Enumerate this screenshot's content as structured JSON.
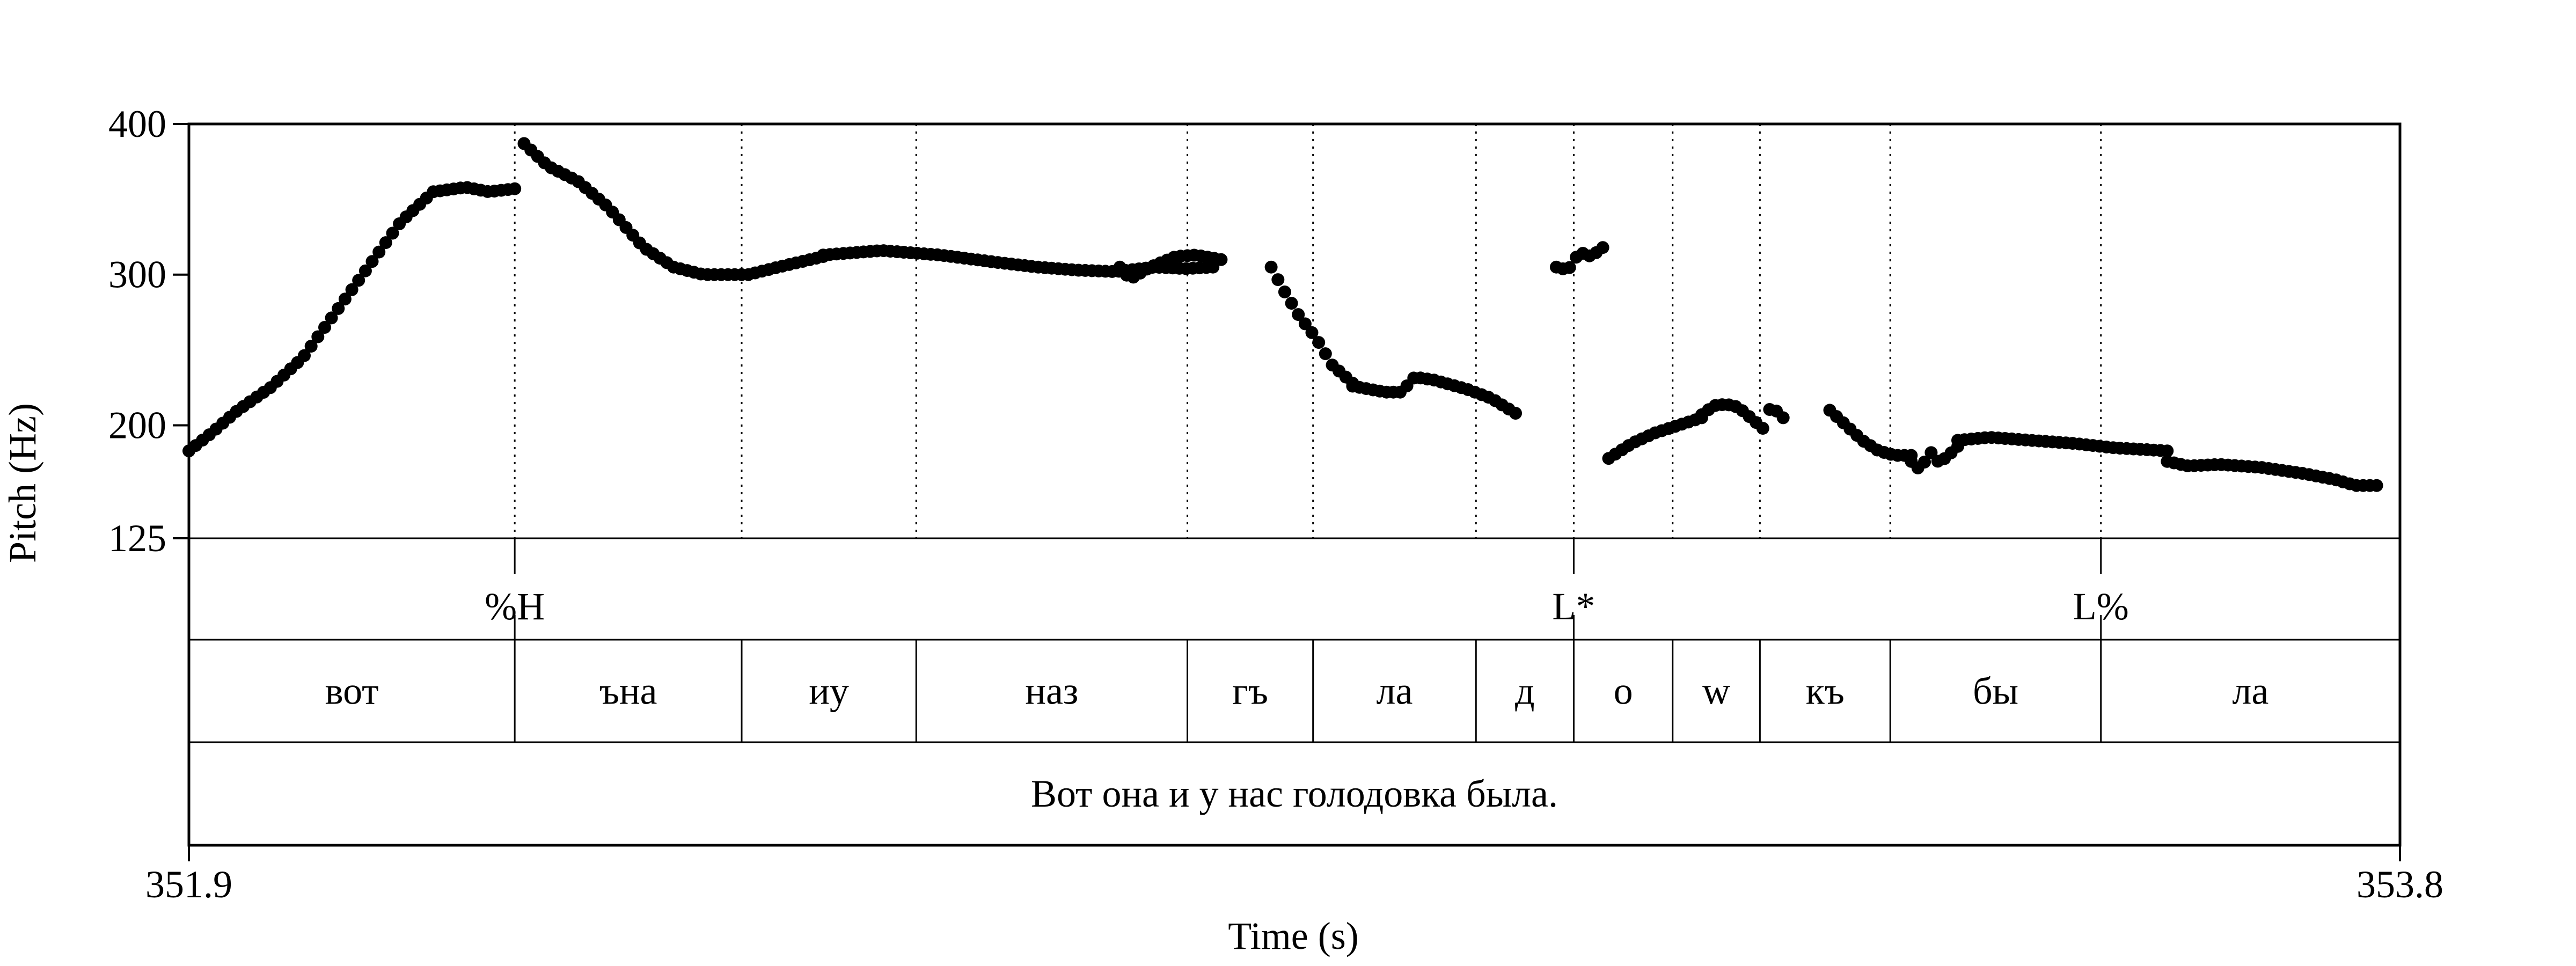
{
  "chart_data": {
    "type": "scatter",
    "title": "",
    "xlabel": "Time (s)",
    "ylabel": "Pitch (Hz)",
    "xlim": [
      351.9,
      353.8
    ],
    "ylim": [
      125,
      400
    ],
    "x_ticks": [
      "351.9",
      "353.8"
    ],
    "y_ticks": [
      {
        "value": 125,
        "label": "125"
      },
      {
        "value": 200,
        "label": "200"
      },
      {
        "value": 300,
        "label": "300"
      },
      {
        "value": 400,
        "label": "400"
      }
    ],
    "grid": false,
    "legend": "none",
    "marker_color": "#000000",
    "pitch_contour": [
      {
        "t0": 351.9,
        "t1": 352.18,
        "shape": [
          [
            0,
            183
          ],
          [
            0.07,
            195
          ],
          [
            0.15,
            210
          ],
          [
            0.25,
            225
          ],
          [
            0.35,
            245
          ],
          [
            0.45,
            275
          ],
          [
            0.55,
            305
          ],
          [
            0.65,
            335
          ],
          [
            0.75,
            355
          ],
          [
            0.85,
            358
          ],
          [
            0.92,
            355
          ],
          [
            1,
            357
          ]
        ]
      },
      {
        "t0": 352.188,
        "t1": 352.445,
        "shape": [
          [
            0,
            387
          ],
          [
            0.08,
            372
          ],
          [
            0.18,
            362
          ],
          [
            0.28,
            345
          ],
          [
            0.4,
            318
          ],
          [
            0.5,
            305
          ],
          [
            0.6,
            300
          ],
          [
            0.75,
            300
          ],
          [
            0.85,
            305
          ],
          [
            1,
            312
          ]
        ]
      },
      {
        "t0": 352.445,
        "t1": 352.78,
        "shape": [
          [
            0,
            313
          ],
          [
            0.15,
            316
          ],
          [
            0.3,
            313
          ],
          [
            0.45,
            308
          ],
          [
            0.55,
            305
          ],
          [
            0.65,
            303
          ],
          [
            0.75,
            302
          ],
          [
            0.85,
            305
          ],
          [
            0.93,
            304
          ],
          [
            1,
            305
          ]
        ]
      },
      {
        "t0": 352.7,
        "t1": 352.787,
        "shape": [
          [
            0,
            305
          ],
          [
            0.1,
            297
          ],
          [
            0.3,
            305
          ],
          [
            0.55,
            312
          ],
          [
            0.75,
            313
          ],
          [
            1,
            310
          ]
        ]
      },
      {
        "t0": 352.83,
        "t1": 352.9,
        "shape": [
          [
            0,
            305
          ],
          [
            0.15,
            290
          ],
          [
            0.35,
            272
          ],
          [
            0.55,
            258
          ],
          [
            0.75,
            240
          ],
          [
            1,
            228
          ]
        ]
      },
      {
        "t0": 352.9,
        "t1": 353.04,
        "shape": [
          [
            0,
            226
          ],
          [
            0.2,
            222
          ],
          [
            0.3,
            222
          ],
          [
            0.38,
            232
          ],
          [
            0.5,
            230
          ],
          [
            0.7,
            224
          ],
          [
            0.85,
            218
          ],
          [
            1,
            208
          ]
        ]
      },
      {
        "t0": 353.075,
        "t1": 353.115,
        "shape": [
          [
            0,
            305
          ],
          [
            0.25,
            303
          ],
          [
            0.5,
            315
          ],
          [
            0.75,
            312
          ],
          [
            1,
            318
          ]
        ]
      },
      {
        "t0": 353.12,
        "t1": 353.2,
        "shape": [
          [
            0,
            178
          ],
          [
            0.25,
            188
          ],
          [
            0.5,
            195
          ],
          [
            0.75,
            200
          ],
          [
            1,
            205
          ]
        ]
      },
      {
        "t0": 353.2,
        "t1": 353.27,
        "shape": [
          [
            0,
            207
          ],
          [
            0.15,
            213
          ],
          [
            0.3,
            214
          ],
          [
            0.45,
            212
          ],
          [
            0.6,
            205
          ],
          [
            0.75,
            198
          ],
          [
            0.85,
            213
          ],
          [
            1,
            205
          ]
        ]
      },
      {
        "t0": 353.31,
        "t1": 353.38,
        "shape": [
          [
            0,
            210
          ],
          [
            0.2,
            200
          ],
          [
            0.4,
            190
          ],
          [
            0.6,
            183
          ],
          [
            0.8,
            180
          ],
          [
            1,
            180
          ]
        ]
      },
      {
        "t0": 353.38,
        "t1": 353.42,
        "shape": [
          [
            0,
            176
          ],
          [
            0.2,
            170
          ],
          [
            0.4,
            183
          ],
          [
            0.6,
            175
          ],
          [
            0.8,
            180
          ],
          [
            1,
            186
          ]
        ]
      },
      {
        "t0": 353.42,
        "t1": 353.6,
        "shape": [
          [
            0,
            190
          ],
          [
            0.15,
            192
          ],
          [
            0.35,
            190
          ],
          [
            0.55,
            188
          ],
          [
            0.75,
            185
          ],
          [
            0.88,
            184
          ],
          [
            1,
            183
          ]
        ]
      },
      {
        "t0": 353.6,
        "t1": 353.78,
        "shape": [
          [
            0,
            176
          ],
          [
            0.1,
            173
          ],
          [
            0.25,
            174
          ],
          [
            0.45,
            172
          ],
          [
            0.65,
            168
          ],
          [
            0.8,
            164
          ],
          [
            0.9,
            160
          ],
          [
            1,
            160
          ]
        ]
      }
    ],
    "boundaries": [
      352.18,
      352.375,
      352.525,
      352.758,
      352.866,
      353.006,
      353.09,
      353.175,
      353.25,
      353.362,
      353.543
    ]
  },
  "tiers": {
    "tones": [
      {
        "t": 352.18,
        "label": "%H"
      },
      {
        "t": 353.09,
        "label": "L*"
      },
      {
        "t": 353.543,
        "label": "L%"
      }
    ],
    "syllables": [
      {
        "t0": 351.9,
        "t1": 352.18,
        "label": "вот"
      },
      {
        "t0": 352.18,
        "t1": 352.375,
        "label": "ъна"
      },
      {
        "t0": 352.375,
        "t1": 352.525,
        "label": "иу"
      },
      {
        "t0": 352.525,
        "t1": 352.758,
        "label": "наз"
      },
      {
        "t0": 352.758,
        "t1": 352.866,
        "label": "гъ"
      },
      {
        "t0": 352.866,
        "t1": 353.006,
        "label": "ла"
      },
      {
        "t0": 353.006,
        "t1": 353.09,
        "label": "д"
      },
      {
        "t0": 353.09,
        "t1": 353.175,
        "label": "о"
      },
      {
        "t0": 353.175,
        "t1": 353.25,
        "label": "w"
      },
      {
        "t0": 353.25,
        "t1": 353.362,
        "label": "къ"
      },
      {
        "t0": 353.362,
        "t1": 353.543,
        "label": "бы"
      },
      {
        "t0": 353.543,
        "t1": 353.8,
        "label": "ла"
      }
    ],
    "sentence": "Вот она и у нас голодовка была."
  }
}
